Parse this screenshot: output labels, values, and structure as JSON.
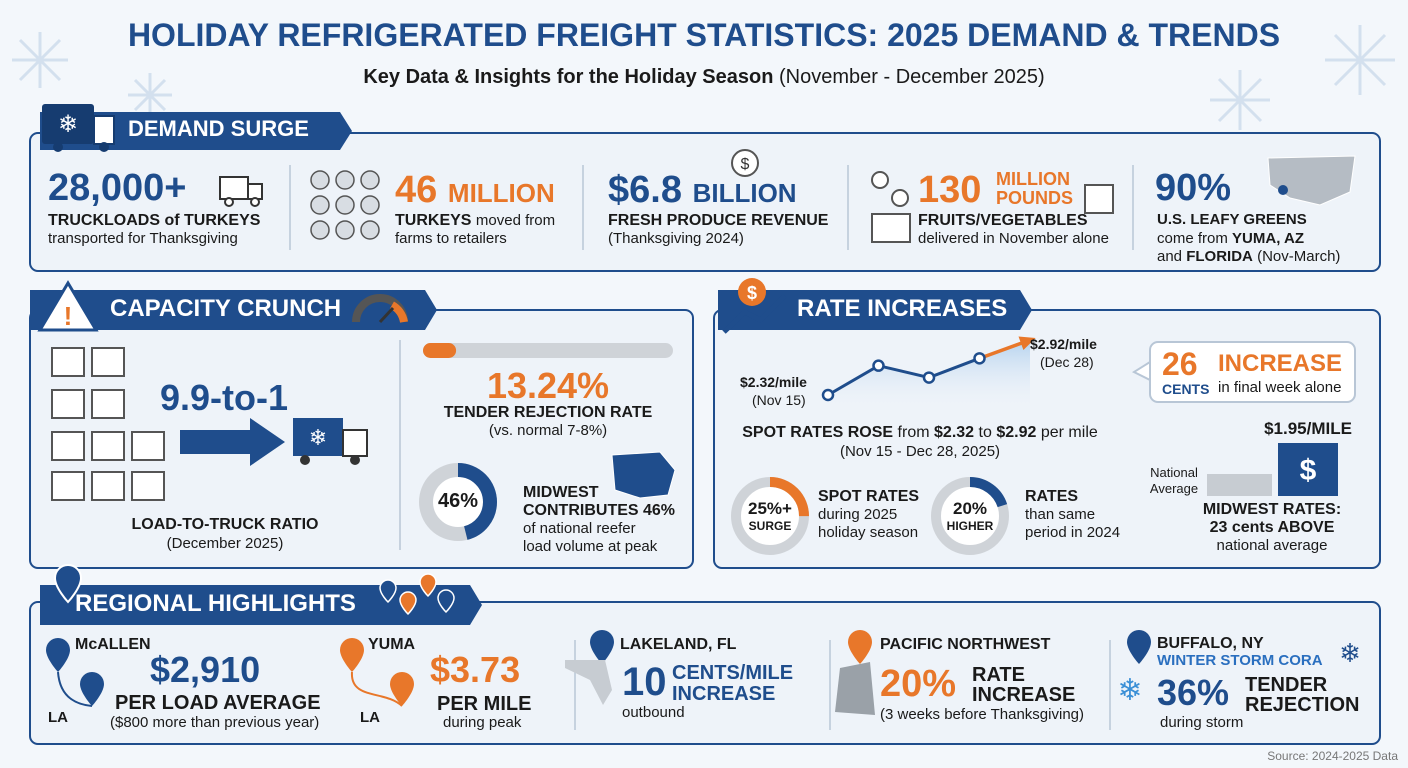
{
  "header": {
    "title": "HOLIDAY REFRIGERATED FREIGHT STATISTICS: 2025 DEMAND & TRENDS",
    "subtitle": "Key Data & Insights for the Holiday Season",
    "subtitle_dates": "(November - December 2025)"
  },
  "demand_surge": {
    "title": "DEMAND SURGE",
    "stats": [
      {
        "value": "28,000+",
        "label": "TRUCKLOADS of TURKEYS",
        "detail": "transported for Thanksgiving"
      },
      {
        "value": "46",
        "unit": "MILLION",
        "label": "TURKEYS",
        "detail": "moved from",
        "detail_2": "farms to retailers"
      },
      {
        "value": "$6.8",
        "unit": "BILLION",
        "label": "FRESH PRODUCE REVENUE",
        "detail": "(Thanksgiving 2024)"
      },
      {
        "value": "130",
        "unit": "MILLION",
        "unit_2": "POUNDS",
        "label": "FRUITS/VEGETABLES",
        "detail": "delivered in November alone"
      },
      {
        "value": "90%",
        "label": "U.S. LEAFY GREENS",
        "detail": "come from",
        "place_1": "YUMA, AZ",
        "detail_2": "and",
        "place_2": "FLORIDA",
        "detail_3": "(Nov-March)"
      }
    ]
  },
  "capacity_crunch": {
    "title": "CAPACITY CRUNCH",
    "ratio": "9.9-to-1",
    "ratio_label": "LOAD-TO-TRUCK RATIO",
    "ratio_detail": "(December 2025)",
    "tender_rejection": {
      "value": 13.24,
      "label": "13.24%"
    },
    "tender_label": "TENDER REJECTION RATE",
    "tender_detail": "(vs. normal 7-8%)",
    "midwest_share": {
      "value": 46,
      "label": "46%"
    },
    "midwest_label": "MIDWEST",
    "midwest_label_2": "CONTRIBUTES 46%",
    "midwest_detail": "of national reefer",
    "midwest_detail_2": "load volume at peak"
  },
  "rate_increases": {
    "title": "RATE INCREASES",
    "trend": [
      2.32,
      2.64,
      2.51,
      2.72,
      2.92
    ],
    "start_rate": "$2.32/mile",
    "start_date": "(Nov 15)",
    "end_rate": "$2.92/mile",
    "end_date": "(Dec 28)",
    "weekly_increase": {
      "value": "26",
      "unit": "CENTS",
      "label": "INCREASE",
      "detail": "in final week alone"
    },
    "summary": {
      "lead": "SPOT RATES ROSE",
      "from": "from",
      "start": "$2.32",
      "to": "to",
      "end": "$2.92",
      "per": "per mile",
      "dates": "(Nov 15 - Dec 28, 2025)"
    },
    "spot_surge": {
      "value": 25,
      "label": "25%+",
      "sublabel": "SURGE",
      "title": "SPOT RATES",
      "detail": "during 2025",
      "detail_2": "holiday season"
    },
    "yoy": {
      "value": 20,
      "label": "20%",
      "sublabel": "HIGHER",
      "title": "RATES",
      "detail": "than same",
      "detail_2": "period in 2024"
    },
    "midwest_rate": "$1.95/MILE",
    "national_label": "National",
    "national_label_2": "Average",
    "midwest_title": "MIDWEST RATES:",
    "midwest_diff": "23 cents ABOVE",
    "midwest_detail": "national average"
  },
  "regional_highlights": {
    "title": "REGIONAL HIGHLIGHTS",
    "regions": [
      {
        "name": "McALLEN",
        "destination": "LA",
        "value": "$2,910",
        "label": "PER LOAD AVERAGE",
        "detail": "($800 more than previous year)"
      },
      {
        "name": "YUMA",
        "destination": "LA",
        "value": "$3.73",
        "label": "PER MILE",
        "detail": "during peak"
      },
      {
        "name": "LAKELAND, FL",
        "value": "10",
        "label": "CENTS/MILE",
        "label_2": "INCREASE",
        "detail": "outbound"
      },
      {
        "name": "PACIFIC NORTHWEST",
        "value": "20%",
        "label": "RATE",
        "label_2": "INCREASE",
        "detail": "(3 weeks before Thanksgiving)"
      },
      {
        "name": "BUFFALO, NY",
        "event": "WINTER STORM CORA",
        "value": "36%",
        "label": "TENDER",
        "label_2": "REJECTION",
        "detail": "during storm"
      }
    ]
  },
  "footer": {
    "source": "Source: 2024-2025 Data"
  }
}
